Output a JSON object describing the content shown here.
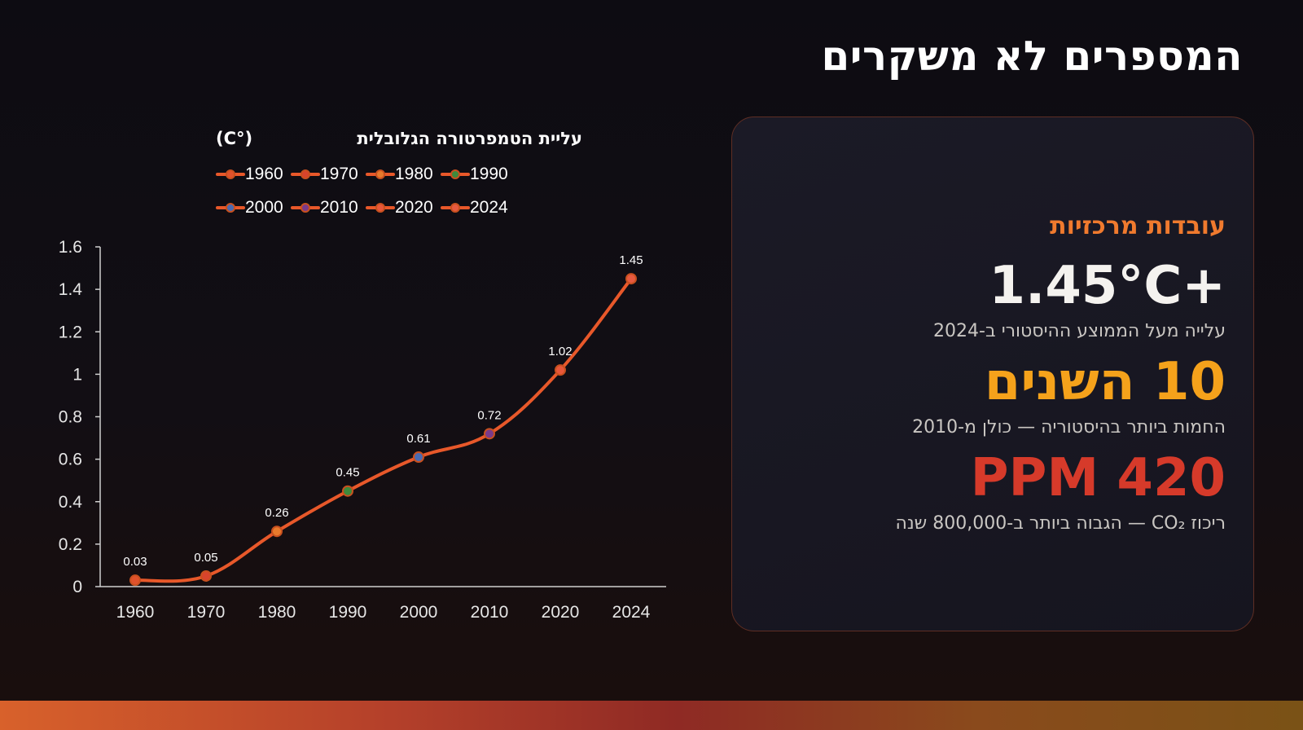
{
  "page": {
    "title": "המספרים לא משקרים"
  },
  "chart_data": {
    "type": "line",
    "title": "עליית הטמפרטורה הגלובלית",
    "unit": "(C°)",
    "categories": [
      "1960",
      "1970",
      "1980",
      "1990",
      "2000",
      "2010",
      "2020",
      "2024"
    ],
    "values": [
      0.03,
      0.05,
      0.26,
      0.45,
      0.61,
      0.72,
      1.02,
      1.45
    ],
    "data_labels": [
      "0.03",
      "0.05",
      "0.26",
      "0.45",
      "0.61",
      "0.72",
      "1.02",
      "1.45"
    ],
    "yticks": [
      "0",
      "0.2",
      "0.4",
      "0.6",
      "0.8",
      "1",
      "1.2",
      "1.4",
      "1.6"
    ],
    "ylim": [
      0,
      1.6
    ],
    "grid": false,
    "legend": {
      "placement": "top",
      "entries": [
        "1960",
        "1970",
        "1980",
        "1990",
        "2000",
        "2010",
        "2020",
        "2024"
      ]
    },
    "line_color": "#e8582a",
    "point_colors": [
      "#e0522c",
      "#d8442c",
      "#e87a2c",
      "#3e8a3c",
      "#4a6ab0",
      "#7a3a8a",
      "#e8573a",
      "#e65a40"
    ]
  },
  "card": {
    "heading": "עובדות מרכזיות",
    "stats": [
      {
        "value": "+1.45°C",
        "caption": "עלייה מעל הממוצע ההיסטורי ב-2024"
      },
      {
        "value": "10 השנים",
        "caption": "החמות ביותר בהיסטוריה — כולן מ-2010"
      },
      {
        "value": "420 PPM",
        "caption": "ריכוז CO₂ — הגבוה ביותר ב-800,000 שנה"
      }
    ]
  },
  "colors": {
    "accent_orange": "#f07a2e",
    "accent_amber": "#f5a21b",
    "accent_red": "#d63a2a",
    "background": "#0d0c12"
  }
}
